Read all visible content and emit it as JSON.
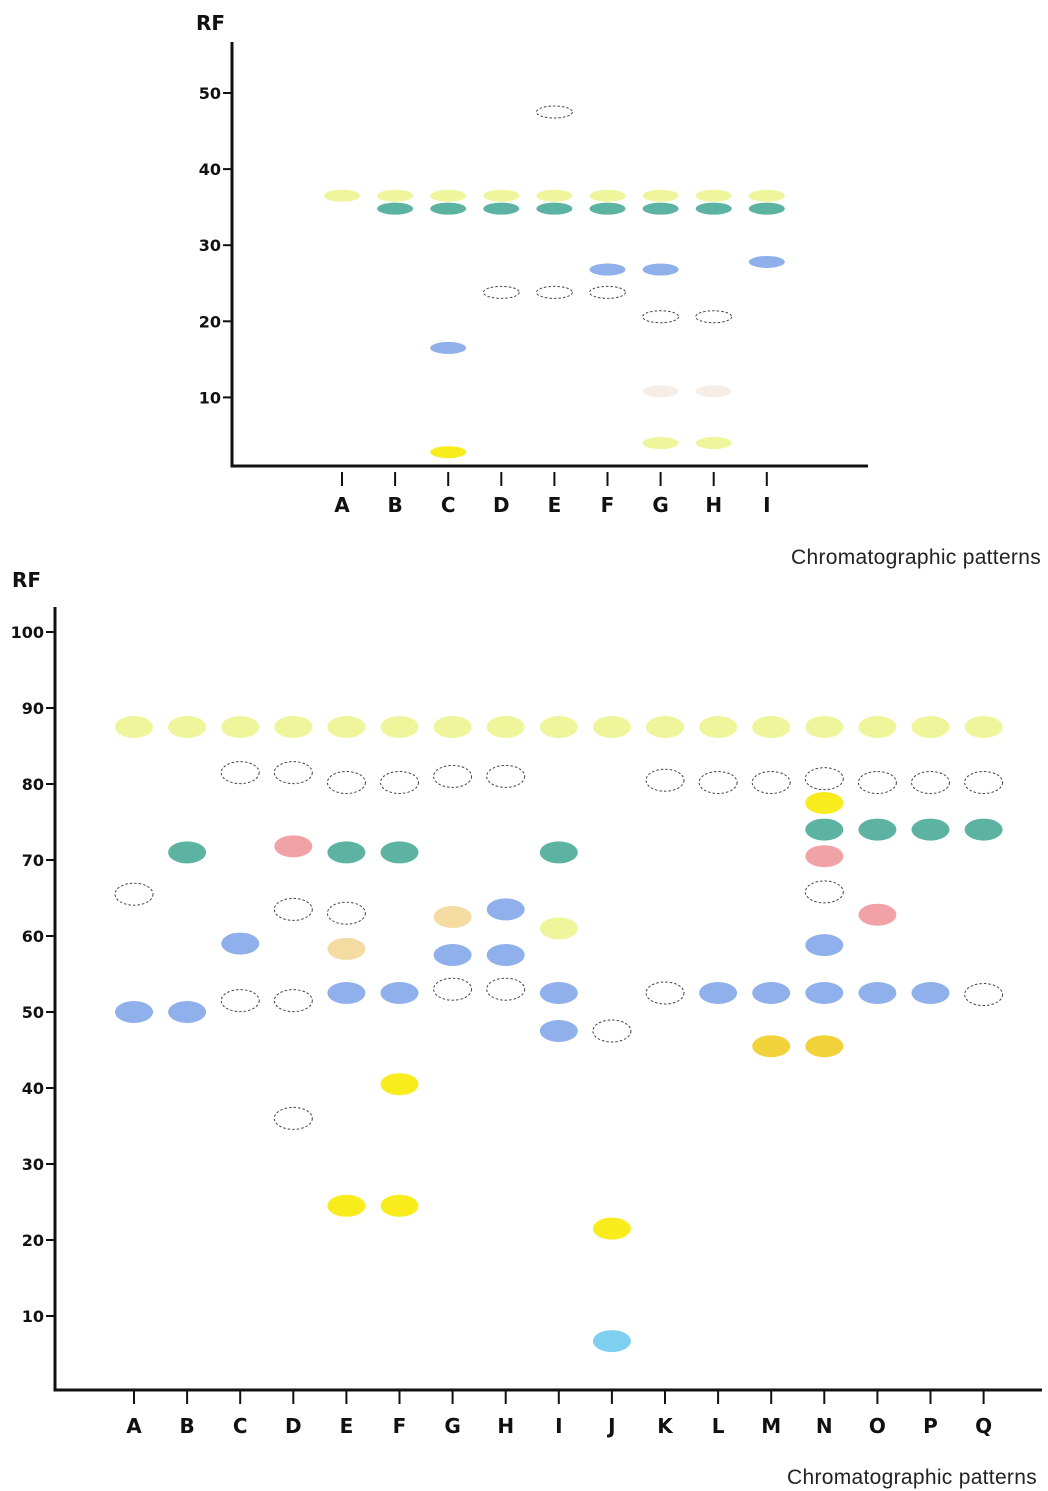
{
  "colors": {
    "axis": "#111111",
    "pale-yellow": "#eef59a",
    "teal": "#5db3a2",
    "blue": "#8fb0ea",
    "yellow": "#f9ec1d",
    "gold": "#f2d23a",
    "pink": "#f0a2a6",
    "peach": "#f4dba1",
    "cyan": "#7fd0f0",
    "faint": "#f6eee6",
    "outline": "#444444"
  },
  "chart_data": [
    {
      "type": "scatter",
      "ylabel": "RF",
      "xlabel": "Chromatographic  patterns",
      "ylim": [
        0,
        55
      ],
      "yticks": [
        10,
        20,
        30,
        40,
        50
      ],
      "categories": [
        "A",
        "B",
        "C",
        "D",
        "E",
        "F",
        "G",
        "H",
        "I"
      ],
      "spots": [
        {
          "lane": "A",
          "rf": 36.5,
          "color": "pale-yellow"
        },
        {
          "lane": "B",
          "rf": 36.5,
          "color": "pale-yellow"
        },
        {
          "lane": "B",
          "rf": 34.8,
          "color": "teal"
        },
        {
          "lane": "C",
          "rf": 36.5,
          "color": "pale-yellow"
        },
        {
          "lane": "C",
          "rf": 34.8,
          "color": "teal"
        },
        {
          "lane": "C",
          "rf": 16.5,
          "color": "blue"
        },
        {
          "lane": "C",
          "rf": 2.8,
          "color": "yellow"
        },
        {
          "lane": "D",
          "rf": 36.5,
          "color": "pale-yellow"
        },
        {
          "lane": "D",
          "rf": 34.8,
          "color": "teal"
        },
        {
          "lane": "D",
          "rf": 23.8,
          "color": "none"
        },
        {
          "lane": "E",
          "rf": 47.5,
          "color": "none"
        },
        {
          "lane": "E",
          "rf": 36.5,
          "color": "pale-yellow"
        },
        {
          "lane": "E",
          "rf": 34.8,
          "color": "teal"
        },
        {
          "lane": "E",
          "rf": 23.8,
          "color": "none"
        },
        {
          "lane": "F",
          "rf": 36.5,
          "color": "pale-yellow"
        },
        {
          "lane": "F",
          "rf": 34.8,
          "color": "teal"
        },
        {
          "lane": "F",
          "rf": 26.8,
          "color": "blue"
        },
        {
          "lane": "F",
          "rf": 23.8,
          "color": "none"
        },
        {
          "lane": "G",
          "rf": 36.5,
          "color": "pale-yellow"
        },
        {
          "lane": "G",
          "rf": 34.8,
          "color": "teal"
        },
        {
          "lane": "G",
          "rf": 26.8,
          "color": "blue"
        },
        {
          "lane": "G",
          "rf": 20.6,
          "color": "none"
        },
        {
          "lane": "G",
          "rf": 10.8,
          "color": "faint"
        },
        {
          "lane": "G",
          "rf": 4.0,
          "color": "pale-yellow"
        },
        {
          "lane": "H",
          "rf": 36.5,
          "color": "pale-yellow"
        },
        {
          "lane": "H",
          "rf": 34.8,
          "color": "teal"
        },
        {
          "lane": "H",
          "rf": 20.6,
          "color": "none"
        },
        {
          "lane": "H",
          "rf": 10.8,
          "color": "faint"
        },
        {
          "lane": "H",
          "rf": 4.0,
          "color": "pale-yellow"
        },
        {
          "lane": "I",
          "rf": 36.5,
          "color": "pale-yellow"
        },
        {
          "lane": "I",
          "rf": 34.8,
          "color": "teal"
        },
        {
          "lane": "I",
          "rf": 27.8,
          "color": "blue"
        }
      ]
    },
    {
      "type": "scatter",
      "ylabel": "RF",
      "xlabel": "Chromatographic  patterns",
      "ylim": [
        0,
        103
      ],
      "yticks": [
        10,
        20,
        30,
        40,
        50,
        60,
        70,
        80,
        90,
        100
      ],
      "categories": [
        "A",
        "B",
        "C",
        "D",
        "E",
        "F",
        "G",
        "H",
        "I",
        "J",
        "K",
        "L",
        "M",
        "N",
        "O",
        "P",
        "Q"
      ],
      "spots": [
        {
          "lane": "A",
          "rf": 87.5,
          "color": "pale-yellow"
        },
        {
          "lane": "A",
          "rf": 65.5,
          "color": "none"
        },
        {
          "lane": "A",
          "rf": 50.0,
          "color": "blue"
        },
        {
          "lane": "B",
          "rf": 87.5,
          "color": "pale-yellow"
        },
        {
          "lane": "B",
          "rf": 71.0,
          "color": "teal"
        },
        {
          "lane": "B",
          "rf": 50.0,
          "color": "blue"
        },
        {
          "lane": "C",
          "rf": 87.5,
          "color": "pale-yellow"
        },
        {
          "lane": "C",
          "rf": 81.5,
          "color": "none"
        },
        {
          "lane": "C",
          "rf": 59.0,
          "color": "blue"
        },
        {
          "lane": "C",
          "rf": 51.5,
          "color": "none"
        },
        {
          "lane": "D",
          "rf": 87.5,
          "color": "pale-yellow"
        },
        {
          "lane": "D",
          "rf": 81.5,
          "color": "none"
        },
        {
          "lane": "D",
          "rf": 71.8,
          "color": "pink"
        },
        {
          "lane": "D",
          "rf": 63.5,
          "color": "none"
        },
        {
          "lane": "D",
          "rf": 51.5,
          "color": "none"
        },
        {
          "lane": "D",
          "rf": 36.0,
          "color": "none"
        },
        {
          "lane": "E",
          "rf": 87.5,
          "color": "pale-yellow"
        },
        {
          "lane": "E",
          "rf": 80.2,
          "color": "none"
        },
        {
          "lane": "E",
          "rf": 71.0,
          "color": "teal"
        },
        {
          "lane": "E",
          "rf": 63.0,
          "color": "none"
        },
        {
          "lane": "E",
          "rf": 58.3,
          "color": "peach"
        },
        {
          "lane": "E",
          "rf": 52.5,
          "color": "blue"
        },
        {
          "lane": "E",
          "rf": 24.5,
          "color": "yellow"
        },
        {
          "lane": "F",
          "rf": 87.5,
          "color": "pale-yellow"
        },
        {
          "lane": "F",
          "rf": 80.2,
          "color": "none"
        },
        {
          "lane": "F",
          "rf": 71.0,
          "color": "teal"
        },
        {
          "lane": "F",
          "rf": 52.5,
          "color": "blue"
        },
        {
          "lane": "F",
          "rf": 40.5,
          "color": "yellow"
        },
        {
          "lane": "F",
          "rf": 24.5,
          "color": "yellow"
        },
        {
          "lane": "G",
          "rf": 87.5,
          "color": "pale-yellow"
        },
        {
          "lane": "G",
          "rf": 81.0,
          "color": "none"
        },
        {
          "lane": "G",
          "rf": 62.5,
          "color": "peach"
        },
        {
          "lane": "G",
          "rf": 57.5,
          "color": "blue"
        },
        {
          "lane": "G",
          "rf": 53.0,
          "color": "none"
        },
        {
          "lane": "H",
          "rf": 87.5,
          "color": "pale-yellow"
        },
        {
          "lane": "H",
          "rf": 81.0,
          "color": "none"
        },
        {
          "lane": "H",
          "rf": 63.5,
          "color": "blue"
        },
        {
          "lane": "H",
          "rf": 57.5,
          "color": "blue"
        },
        {
          "lane": "H",
          "rf": 53.0,
          "color": "none"
        },
        {
          "lane": "I",
          "rf": 87.5,
          "color": "pale-yellow"
        },
        {
          "lane": "I",
          "rf": 71.0,
          "color": "teal"
        },
        {
          "lane": "I",
          "rf": 61.0,
          "color": "pale-yellow"
        },
        {
          "lane": "I",
          "rf": 52.5,
          "color": "blue"
        },
        {
          "lane": "I",
          "rf": 47.5,
          "color": "blue"
        },
        {
          "lane": "J",
          "rf": 87.5,
          "color": "pale-yellow"
        },
        {
          "lane": "J",
          "rf": 47.5,
          "color": "none"
        },
        {
          "lane": "J",
          "rf": 21.5,
          "color": "yellow"
        },
        {
          "lane": "J",
          "rf": 6.7,
          "color": "cyan"
        },
        {
          "lane": "K",
          "rf": 87.5,
          "color": "pale-yellow"
        },
        {
          "lane": "K",
          "rf": 80.5,
          "color": "none"
        },
        {
          "lane": "K",
          "rf": 52.5,
          "color": "none"
        },
        {
          "lane": "L",
          "rf": 87.5,
          "color": "pale-yellow"
        },
        {
          "lane": "L",
          "rf": 80.2,
          "color": "none"
        },
        {
          "lane": "L",
          "rf": 52.5,
          "color": "blue"
        },
        {
          "lane": "M",
          "rf": 87.5,
          "color": "pale-yellow"
        },
        {
          "lane": "M",
          "rf": 80.2,
          "color": "none"
        },
        {
          "lane": "M",
          "rf": 52.5,
          "color": "blue"
        },
        {
          "lane": "M",
          "rf": 45.5,
          "color": "gold"
        },
        {
          "lane": "N",
          "rf": 87.5,
          "color": "pale-yellow"
        },
        {
          "lane": "N",
          "rf": 80.7,
          "color": "none"
        },
        {
          "lane": "N",
          "rf": 77.5,
          "color": "yellow"
        },
        {
          "lane": "N",
          "rf": 74.0,
          "color": "teal"
        },
        {
          "lane": "N",
          "rf": 70.5,
          "color": "pink"
        },
        {
          "lane": "N",
          "rf": 65.8,
          "color": "none"
        },
        {
          "lane": "N",
          "rf": 58.8,
          "color": "blue"
        },
        {
          "lane": "N",
          "rf": 52.5,
          "color": "blue"
        },
        {
          "lane": "N",
          "rf": 45.5,
          "color": "gold"
        },
        {
          "lane": "O",
          "rf": 87.5,
          "color": "pale-yellow"
        },
        {
          "lane": "O",
          "rf": 80.2,
          "color": "none"
        },
        {
          "lane": "O",
          "rf": 74.0,
          "color": "teal"
        },
        {
          "lane": "O",
          "rf": 62.8,
          "color": "pink"
        },
        {
          "lane": "O",
          "rf": 52.5,
          "color": "blue"
        },
        {
          "lane": "P",
          "rf": 87.5,
          "color": "pale-yellow"
        },
        {
          "lane": "P",
          "rf": 80.2,
          "color": "none"
        },
        {
          "lane": "P",
          "rf": 74.0,
          "color": "teal"
        },
        {
          "lane": "P",
          "rf": 52.5,
          "color": "blue"
        },
        {
          "lane": "Q",
          "rf": 87.5,
          "color": "pale-yellow"
        },
        {
          "lane": "Q",
          "rf": 80.2,
          "color": "none"
        },
        {
          "lane": "Q",
          "rf": 74.0,
          "color": "teal"
        },
        {
          "lane": "Q",
          "rf": 52.3,
          "color": "none"
        }
      ]
    }
  ]
}
